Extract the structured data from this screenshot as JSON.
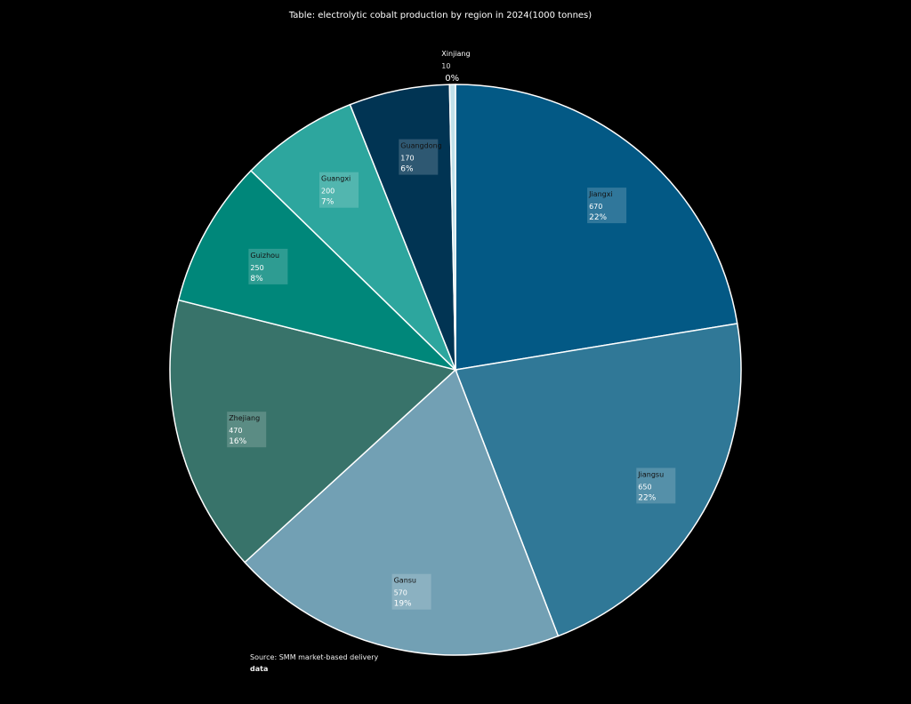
{
  "chart_data": {
    "type": "pie",
    "title": "Table: electrolytic cobalt production by region in 2024(1000 tonnes)",
    "slices": [
      {
        "label": "Jiangxi",
        "value": 670,
        "value_text": "670",
        "pct_text": "22%",
        "color": "#035985"
      },
      {
        "label": "Jiangsu",
        "value": 650,
        "value_text": "650",
        "pct_text": "22%",
        "color": "#307897"
      },
      {
        "label": "Gansu",
        "value": 570,
        "value_text": "570",
        "pct_text": "19%",
        "color": "#72a0b4"
      },
      {
        "label": "Zhejiang",
        "value": 470,
        "value_text": "470",
        "pct_text": "16%",
        "color": "#38736a"
      },
      {
        "label": "Guizhou",
        "value": 250,
        "value_text": "250",
        "pct_text": "8%",
        "color": "#00877a"
      },
      {
        "label": "Guangxi",
        "value": 200,
        "value_text": "200",
        "pct_text": "7%",
        "color": "#2da69e"
      },
      {
        "label": "Guangdong",
        "value": 170,
        "value_text": "170",
        "pct_text": "6%",
        "color": "#013453"
      },
      {
        "label": "Xinjiang",
        "value": 10,
        "value_text": "10",
        "pct_text": "0%",
        "color": "#bfe0ea"
      }
    ],
    "slice_border_color": "#ffffff",
    "legend": "none"
  },
  "source": {
    "line1": "Source: SMM market-based delivery",
    "line2": "data"
  }
}
